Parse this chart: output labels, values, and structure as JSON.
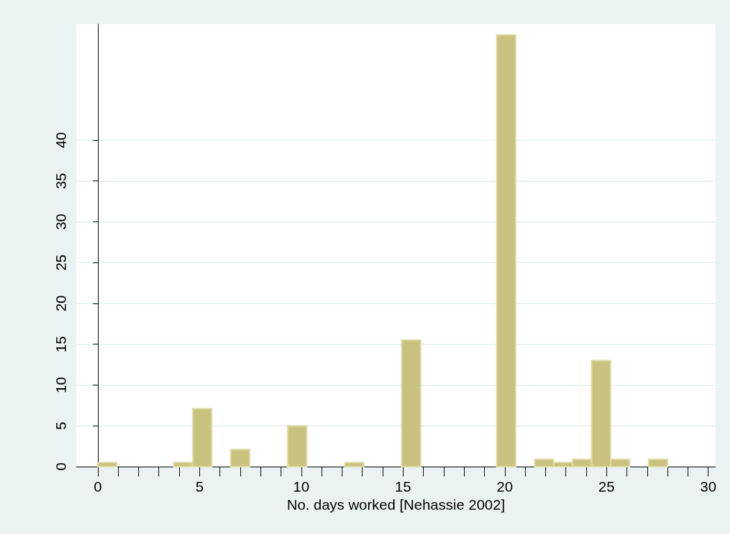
{
  "chart_data": {
    "type": "histogram",
    "xlabel": "No. days worked [Nehassie 2002]",
    "bins": [
      0,
      0.933,
      1.867,
      2.8,
      3.733,
      4.667,
      5.6,
      6.533,
      7.467,
      8.4,
      9.333,
      10.267,
      11.2,
      12.133,
      13.067,
      14,
      14.933,
      15.867,
      16.8,
      17.733,
      18.667,
      19.6,
      20.533,
      21.467,
      22.4,
      23.333,
      24.267,
      25.2,
      26.133,
      27.067,
      28
    ],
    "values": [
      0.5,
      0,
      0,
      0,
      0.5,
      7.1,
      0,
      2.1,
      0,
      0,
      5,
      0,
      0,
      0.5,
      0,
      0,
      15.5,
      0,
      0,
      0,
      0,
      52.9,
      0,
      0.9,
      0.5,
      0.9,
      13,
      0.9,
      0,
      0.9
    ],
    "color": "#c9c27f",
    "xlim": [
      -1.05,
      30.35
    ],
    "xticks": [
      0,
      {
        "value": 1,
        "label": null
      },
      {
        "value": 2,
        "label": null
      },
      {
        "value": 3,
        "label": null
      },
      {
        "value": 4,
        "label": null
      },
      5,
      {
        "value": 6,
        "label": null
      },
      {
        "value": 7,
        "label": null
      },
      {
        "value": 8,
        "label": null
      },
      {
        "value": 9,
        "label": null
      },
      10,
      {
        "value": 11,
        "label": null
      },
      {
        "value": 12,
        "label": null
      },
      {
        "value": 13,
        "label": null
      },
      {
        "value": 14,
        "label": null
      },
      15,
      {
        "value": 16,
        "label": null
      },
      {
        "value": 17,
        "label": null
      },
      {
        "value": 18,
        "label": null
      },
      {
        "value": 19,
        "label": null
      },
      20,
      {
        "value": 21,
        "label": null
      },
      {
        "value": 22,
        "label": null
      },
      {
        "value": 23,
        "label": null
      },
      {
        "value": 24,
        "label": null
      },
      25,
      {
        "value": 26,
        "label": null
      },
      {
        "value": 27,
        "label": null
      },
      {
        "value": 28,
        "label": null
      },
      {
        "value": 29,
        "label": null
      },
      30
    ],
    "ylim": [
      0,
      54.2
    ],
    "yticks": [
      0,
      5,
      10,
      15,
      20,
      25,
      30,
      35,
      40
    ],
    "grid": "y"
  }
}
